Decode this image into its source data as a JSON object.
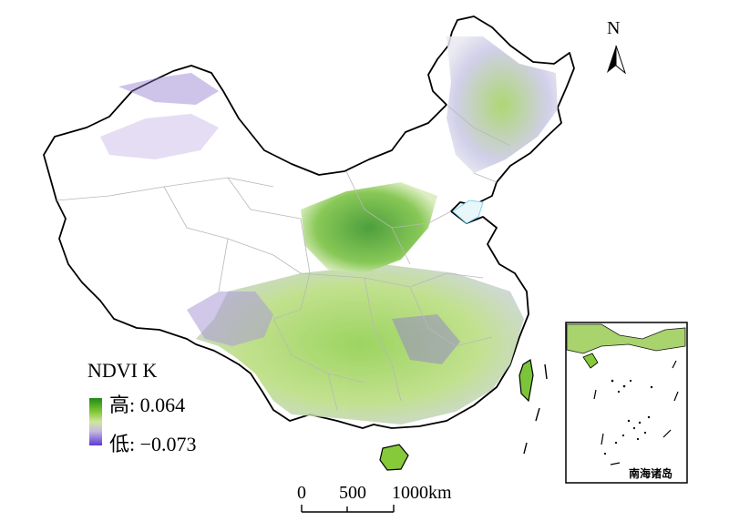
{
  "legend": {
    "title": "NDVI K",
    "high_label": "高: 0.064",
    "low_label": "低: −0.073",
    "high_color": "#1c8c12",
    "low_color": "#5a3ad6"
  },
  "north_arrow": {
    "label": "N"
  },
  "scale_bar": {
    "tick_0": "0",
    "tick_500": "500",
    "tick_1000": "1000km"
  },
  "inset": {
    "label": "南海诸岛"
  },
  "colors": {
    "boundary": "#000000",
    "province_lines": "#b8b8b8",
    "water": "#7fd3e8",
    "vegetation_green": "#7cc43a",
    "vegetation_dark_green": "#2e8f1e",
    "vegetation_purple": "#7d63c9"
  }
}
